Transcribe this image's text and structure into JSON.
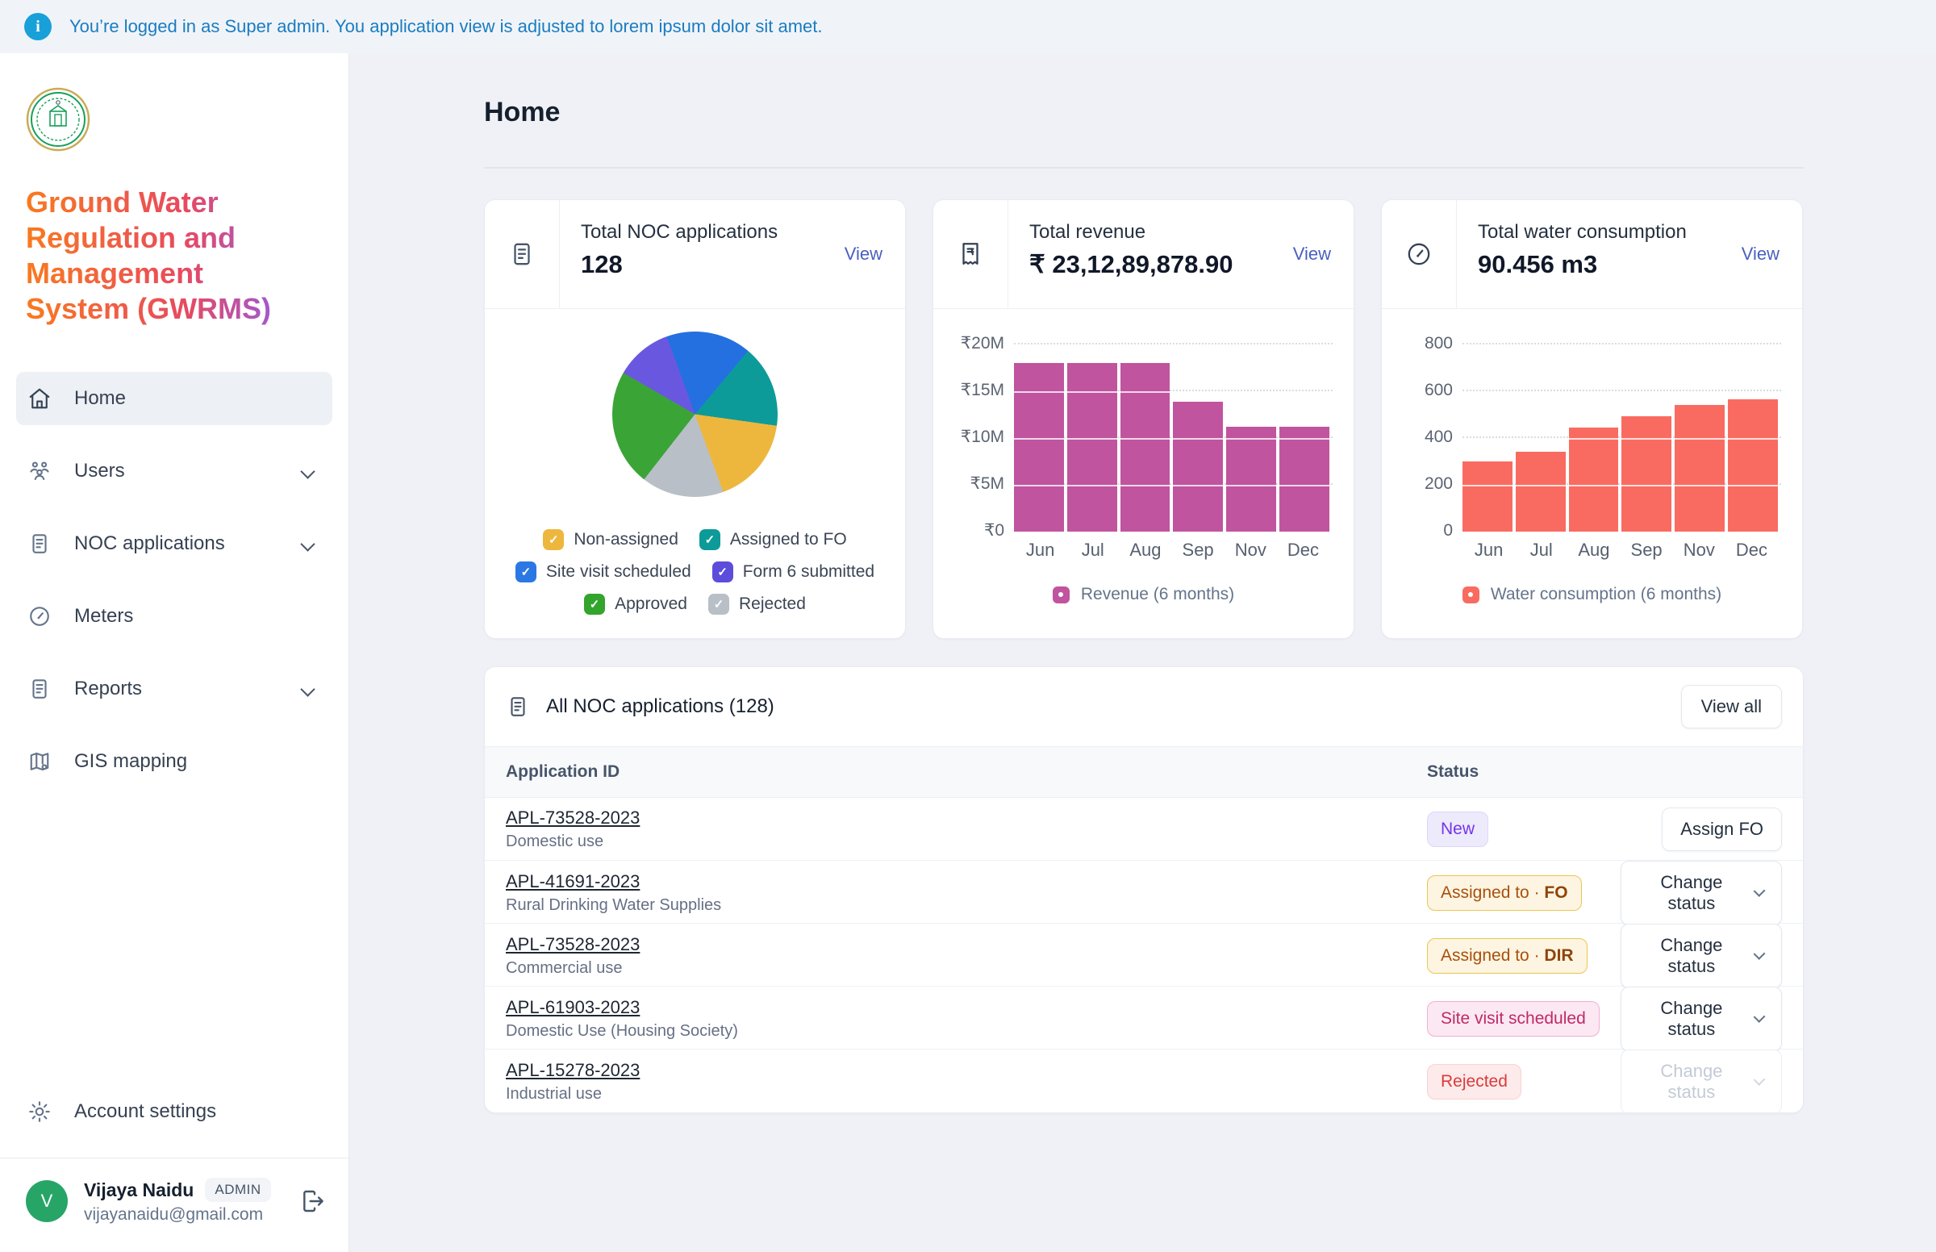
{
  "banner": {
    "text": "You’re logged in as Super admin. You application view is adjusted to lorem ipsum dolor sit amet."
  },
  "sidebar": {
    "logo": "government-of-telangana-emblem",
    "title": "Ground Water Regulation and Management System (GWRMS)",
    "items": [
      {
        "label": "Home",
        "icon": "home-icon",
        "active": true,
        "expandable": false
      },
      {
        "label": "Users",
        "icon": "users-icon",
        "active": false,
        "expandable": true
      },
      {
        "label": "NOC applications",
        "icon": "document-icon",
        "active": false,
        "expandable": true
      },
      {
        "label": "Meters",
        "icon": "meter-icon",
        "active": false,
        "expandable": false
      },
      {
        "label": "Reports",
        "icon": "document-icon",
        "active": false,
        "expandable": true
      },
      {
        "label": "GIS mapping",
        "icon": "map-icon",
        "active": false,
        "expandable": false
      }
    ],
    "account_settings_label": "Account settings",
    "user": {
      "initial": "V",
      "name": "Vijaya Naidu",
      "role_badge": "ADMIN",
      "email": "vijayanaidu@gmail.com"
    }
  },
  "main": {
    "page_title": "Home",
    "cards": [
      {
        "title": "Total NOC applications",
        "value": "128",
        "view_label": "View",
        "icon": "document-icon"
      },
      {
        "title": "Total revenue",
        "value": "₹ 23,12,89,878.90",
        "view_label": "View",
        "icon": "receipt-rupee-icon"
      },
      {
        "title": "Total water consumption",
        "value": "90.456 m3",
        "view_label": "View",
        "icon": "gauge-icon"
      }
    ],
    "table": {
      "title": "All NOC applications (128)",
      "view_all_label": "View all",
      "columns": [
        "Application ID",
        "Status"
      ],
      "rows": [
        {
          "id": "APL-73528-2023",
          "subtitle": "Domestic use",
          "status": {
            "label": "New",
            "type": "new"
          },
          "action": {
            "label": "Assign FO",
            "type": "button",
            "disabled": false
          }
        },
        {
          "id": "APL-41691-2023",
          "subtitle": "Rural Drinking Water Supplies",
          "status": {
            "label": "Assigned to ·",
            "suffix": "FO",
            "type": "assigned"
          },
          "action": {
            "label": "Change status",
            "type": "dropdown",
            "disabled": false
          }
        },
        {
          "id": "APL-73528-2023",
          "subtitle": "Commercial use",
          "status": {
            "label": "Assigned to ·",
            "suffix": "DIR",
            "type": "assigned"
          },
          "action": {
            "label": "Change status",
            "type": "dropdown",
            "disabled": false
          }
        },
        {
          "id": "APL-61903-2023",
          "subtitle": "Domestic Use (Housing Society)",
          "status": {
            "label": "Site visit scheduled",
            "type": "sitevisit"
          },
          "action": {
            "label": "Change status",
            "type": "dropdown",
            "disabled": false
          }
        },
        {
          "id": "APL-15278-2023",
          "subtitle": "Industrial use",
          "status": {
            "label": "Rejected",
            "type": "rejected"
          },
          "action": {
            "label": "Change status",
            "type": "dropdown",
            "disabled": true
          }
        }
      ]
    }
  },
  "chart_data": [
    {
      "id": "noc-pie",
      "type": "pie",
      "title": "Total NOC applications by status",
      "start_deg": -20,
      "slices": [
        {
          "label": "Site visit scheduled",
          "color": "#2470e0",
          "sweep_deg": 60,
          "pct": 16.7
        },
        {
          "label": "Assigned to FO",
          "color": "#0d9b99",
          "sweep_deg": 58,
          "pct": 16.1
        },
        {
          "label": "Non-assigned",
          "color": "#edb73e",
          "sweep_deg": 62,
          "pct": 17.2
        },
        {
          "label": "Rejected",
          "color": "#b9bfc6",
          "sweep_deg": 58,
          "pct": 16.1
        },
        {
          "label": "Approved",
          "color": "#3ba437",
          "sweep_deg": 82,
          "pct": 22.8
        },
        {
          "label": "Form 6 submitted",
          "color": "#6a57e0",
          "sweep_deg": 40,
          "pct": 11.1
        }
      ],
      "legend": [
        {
          "label": "Non-assigned",
          "color": "#edb73e"
        },
        {
          "label": "Assigned to FO",
          "color": "#0d9b99"
        },
        {
          "label": "Site visit scheduled",
          "color": "#2b78e4"
        },
        {
          "label": "Form 6 submitted",
          "color": "#5c4ddb"
        },
        {
          "label": "Approved",
          "color": "#33a42c"
        },
        {
          "label": "Rejected",
          "color": "#b9bfc6"
        }
      ],
      "legend_position": "bottom"
    },
    {
      "id": "revenue",
      "type": "bar",
      "title": "Revenue (6 months)",
      "categories": [
        "Jun",
        "Jul",
        "Aug",
        "Sep",
        "Nov",
        "Dec"
      ],
      "values": [
        18,
        18,
        18,
        13.9,
        11.2,
        11.2
      ],
      "unit": "₹M",
      "ymax": 20,
      "ticks": [
        "₹20M",
        "₹15M",
        "₹10M",
        "₹5M",
        "₹0"
      ],
      "color": "#c0549e",
      "grid": "dotted",
      "legend_label": "Revenue (6 months)",
      "legend_position": "bottom"
    },
    {
      "id": "water",
      "type": "bar",
      "title": "Water consumption (6 months)",
      "categories": [
        "Jun",
        "Jul",
        "Aug",
        "Sep",
        "Nov",
        "Dec"
      ],
      "values": [
        300,
        340,
        445,
        492,
        540,
        565
      ],
      "unit": "m3",
      "ymax": 800,
      "ticks": [
        "800",
        "600",
        "400",
        "200",
        "0"
      ],
      "color": "#f96b61",
      "grid": "dotted",
      "legend_label": "Water consumption (6 months)",
      "legend_position": "bottom"
    }
  ]
}
